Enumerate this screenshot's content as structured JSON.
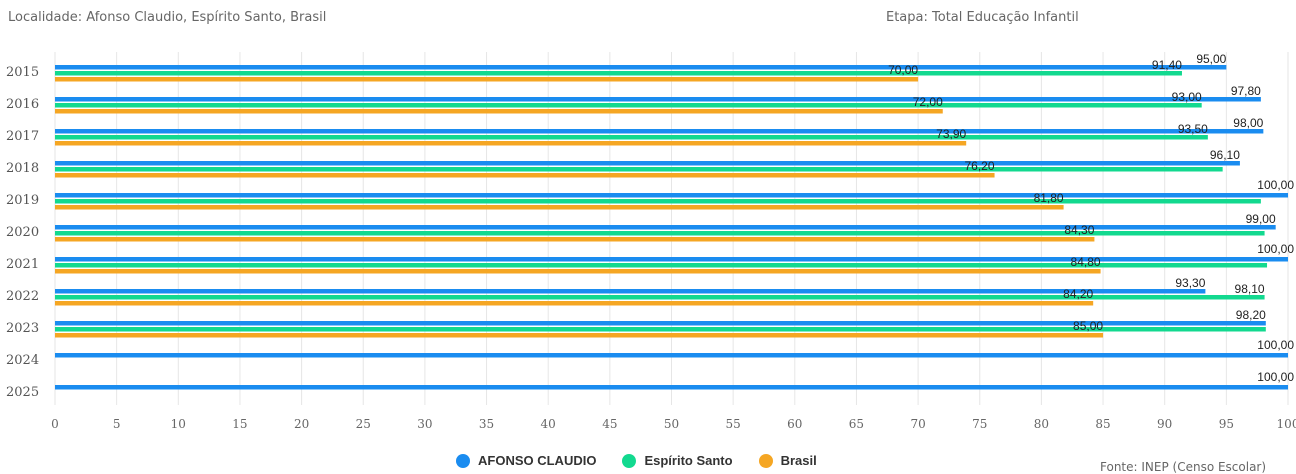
{
  "header": {
    "location": "Localidade: Afonso Claudio, Espírito Santo, Brasil",
    "stage": "Etapa: Total Educação Infantil"
  },
  "source": "Fonte: INEP (Censo Escolar)",
  "chart_data": {
    "type": "bar",
    "orientation": "horizontal",
    "categories": [
      "2015",
      "2016",
      "2017",
      "2018",
      "2019",
      "2020",
      "2021",
      "2022",
      "2023",
      "2024",
      "2025"
    ],
    "series": [
      {
        "name": "AFONSO CLAUDIO",
        "color": "#1a8cf0",
        "values": [
          95.0,
          97.8,
          98.0,
          96.1,
          100.0,
          99.0,
          100.0,
          93.3,
          98.2,
          100.0,
          100.0
        ],
        "labels": [
          "95,00",
          "97,80",
          "98,00",
          "96,10",
          "100,00",
          "99,00",
          "100,00",
          "93,30",
          "98,20",
          "100,00",
          "100,00"
        ]
      },
      {
        "name": "Espírito Santo",
        "color": "#12d98f",
        "values": [
          91.4,
          93.0,
          93.5,
          94.7,
          97.8,
          98.1,
          98.3,
          98.1,
          98.2,
          null,
          null
        ],
        "labels": [
          "91,40",
          "93,00",
          "93,50",
          "",
          "",
          "",
          "",
          "98,10",
          "",
          "",
          ""
        ]
      },
      {
        "name": "Brasil",
        "color": "#f5a623",
        "values": [
          70.0,
          72.0,
          73.9,
          76.2,
          81.8,
          84.3,
          84.8,
          84.2,
          85.0,
          null,
          null
        ],
        "labels": [
          "70,00",
          "72,00",
          "73,90",
          "76,20",
          "81,80",
          "84,30",
          "84,80",
          "84,20",
          "85,00",
          "",
          ""
        ]
      }
    ],
    "xticks": [
      0,
      5,
      10,
      15,
      20,
      25,
      30,
      35,
      40,
      45,
      50,
      55,
      60,
      65,
      70,
      75,
      80,
      85,
      90,
      95,
      100
    ],
    "xlim": [
      0,
      100
    ],
    "grid": true,
    "legend_position": "bottom"
  }
}
